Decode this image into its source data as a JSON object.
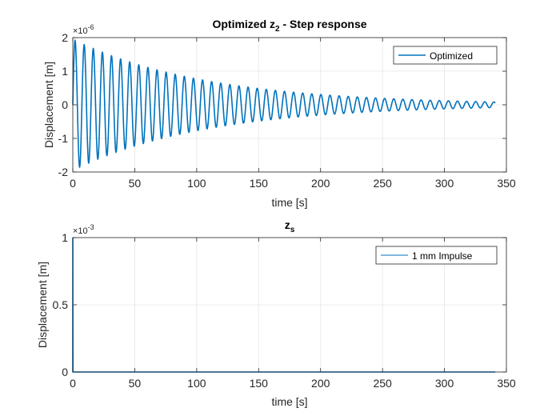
{
  "chart_data": [
    {
      "type": "line",
      "title": "Optimized z",
      "title_subscript": "2",
      "title_suffix": " - Step response",
      "xlabel": "time [s]",
      "ylabel": "Displacement [m]",
      "xlim": [
        0,
        350
      ],
      "ylim": [
        -2e-06,
        2e-06
      ],
      "y_exponent": "×10",
      "y_exponent_power": "-6",
      "xticks": [
        0,
        50,
        100,
        150,
        200,
        250,
        300,
        350
      ],
      "xtick_labels": [
        "0",
        "50",
        "100",
        "150",
        "200",
        "250",
        "300",
        "350"
      ],
      "yticks": [
        -2e-06,
        -1e-06,
        0,
        1e-06,
        2e-06
      ],
      "ytick_labels": [
        "-2",
        "-1",
        "0",
        "1",
        "2"
      ],
      "grid": true,
      "legend_position": "top-right",
      "color": "#0072BD",
      "series": [
        {
          "name": "Optimized",
          "signal": "damped_oscillation",
          "x_start": 0,
          "x_end": 341,
          "amplitude": 1.95e-06,
          "period": 7.35,
          "decay_time_constant": 108,
          "envelope_samples": [
            {
              "t": 2,
              "peak": 1.95e-06
            },
            {
              "t": 10,
              "peak": 1.77e-06
            },
            {
              "t": 18,
              "peak": 1.57e-06
            },
            {
              "t": 100,
              "peak": 6.5e-07
            },
            {
              "t": 200,
              "peak": 1.8e-07
            },
            {
              "t": 300,
              "peak": 4e-08
            }
          ]
        }
      ]
    },
    {
      "type": "line",
      "title": "z",
      "title_subscript": "s",
      "title_suffix": "",
      "xlabel": "time [s]",
      "ylabel": "Displacement [m]",
      "xlim": [
        0,
        350
      ],
      "ylim": [
        0,
        0.001
      ],
      "y_exponent": "×10",
      "y_exponent_power": "-3",
      "xticks": [
        0,
        50,
        100,
        150,
        200,
        250,
        300,
        350
      ],
      "xtick_labels": [
        "0",
        "50",
        "100",
        "150",
        "200",
        "250",
        "300",
        "350"
      ],
      "yticks": [
        0,
        0.0005,
        0.001
      ],
      "ytick_labels": [
        "0",
        "0.5",
        "1"
      ],
      "grid": true,
      "legend_position": "top-right",
      "color": "#0072BD",
      "series": [
        {
          "name": "1 mm Impulse",
          "x": [
            0,
            0,
            0.15,
            341
          ],
          "y": [
            0,
            0.001,
            0,
            0
          ]
        }
      ]
    }
  ]
}
